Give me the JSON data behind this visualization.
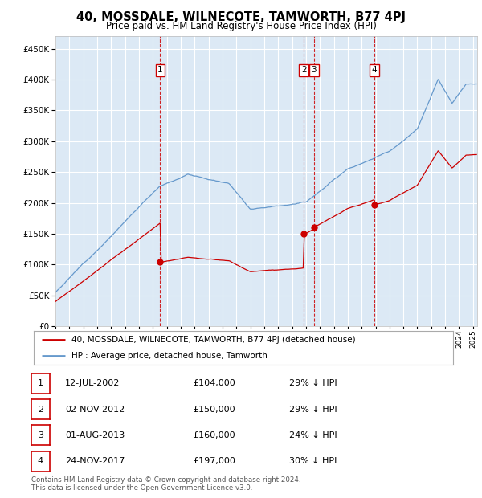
{
  "title": "40, MOSSDALE, WILNECOTE, TAMWORTH, B77 4PJ",
  "subtitle": "Price paid vs. HM Land Registry's House Price Index (HPI)",
  "ylim": [
    0,
    470000
  ],
  "yticks": [
    0,
    50000,
    100000,
    150000,
    200000,
    250000,
    300000,
    350000,
    400000,
    450000
  ],
  "xlim_start": 1995.0,
  "xlim_end": 2025.3,
  "background_color": "#dce9f5",
  "grid_color": "#ffffff",
  "sale_color": "#cc0000",
  "hpi_color": "#6699cc",
  "sales": [
    {
      "date_num": 2002.53,
      "price": 104000,
      "label": "1"
    },
    {
      "date_num": 2012.84,
      "price": 150000,
      "label": "2"
    },
    {
      "date_num": 2013.58,
      "price": 160000,
      "label": "3"
    },
    {
      "date_num": 2017.9,
      "price": 197000,
      "label": "4"
    }
  ],
  "legend_sale_label": "40, MOSSDALE, WILNECOTE, TAMWORTH, B77 4PJ (detached house)",
  "legend_hpi_label": "HPI: Average price, detached house, Tamworth",
  "table_rows": [
    {
      "num": "1",
      "date": "12-JUL-2002",
      "price": "£104,000",
      "note": "29% ↓ HPI"
    },
    {
      "num": "2",
      "date": "02-NOV-2012",
      "price": "£150,000",
      "note": "29% ↓ HPI"
    },
    {
      "num": "3",
      "date": "01-AUG-2013",
      "price": "£160,000",
      "note": "24% ↓ HPI"
    },
    {
      "num": "4",
      "date": "24-NOV-2017",
      "price": "£197,000",
      "note": "30% ↓ HPI"
    }
  ],
  "footer": "Contains HM Land Registry data © Crown copyright and database right 2024.\nThis data is licensed under the Open Government Licence v3.0."
}
